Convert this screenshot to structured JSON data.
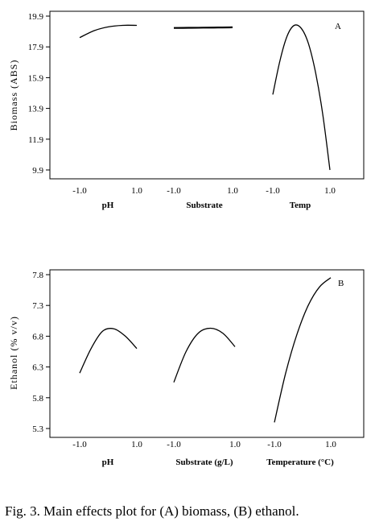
{
  "caption": "Fig. 3. Main effects plot for (A) biomass, (B) ethanol.",
  "chart_data": [
    {
      "type": "line",
      "panel_label": "A",
      "ylabel": "Biomass (ABS)",
      "yticks": [
        "19.9",
        "17.9",
        "15.9",
        "13.9",
        "11.9",
        "9.9"
      ],
      "ylim": [
        9.6,
        20.2
      ],
      "grid": false,
      "factors": [
        {
          "name": "pH",
          "ticks": [
            "-1.0",
            "1.0"
          ],
          "x": [
            -1.0,
            -0.5,
            0.0,
            0.5,
            1.0
          ],
          "y": [
            18.5,
            18.95,
            19.2,
            19.3,
            19.3
          ]
        },
        {
          "name": "Substrate",
          "ticks": [
            "-1.0",
            "1.0"
          ],
          "x": [
            -1.0,
            -0.5,
            0.0,
            0.5,
            1.0
          ],
          "y": [
            19.13,
            19.14,
            19.15,
            19.16,
            19.17
          ]
        },
        {
          "name": "Temp",
          "ticks": [
            "-1.0",
            "1.0"
          ],
          "x": [
            -1.0,
            -0.75,
            -0.5,
            -0.25,
            0.0,
            0.25,
            0.5,
            0.75,
            1.0
          ],
          "y": [
            14.8,
            17.0,
            18.6,
            19.3,
            19.1,
            18.1,
            16.2,
            13.5,
            9.9
          ]
        }
      ]
    },
    {
      "type": "line",
      "panel_label": "B",
      "ylabel": "Ethanol (% v/v)",
      "yticks": [
        "7.8",
        "7.3",
        "6.8",
        "6.3",
        "5.8",
        "5.3"
      ],
      "ylim": [
        5.27,
        7.83
      ],
      "grid": false,
      "factors": [
        {
          "name": "pH",
          "ticks": [
            "-1.0",
            "1.0"
          ],
          "x": [
            -1.0,
            -0.6,
            -0.2,
            0.2,
            0.6,
            1.0
          ],
          "y": [
            6.2,
            6.6,
            6.88,
            6.92,
            6.8,
            6.6
          ]
        },
        {
          "name": "Substrate (g/L)",
          "ticks": [
            "-1.0",
            "1.0"
          ],
          "x": [
            -1.0,
            -0.6,
            -0.2,
            0.2,
            0.6,
            1.0
          ],
          "y": [
            6.05,
            6.55,
            6.85,
            6.93,
            6.85,
            6.63
          ]
        },
        {
          "name": "Temperature (°C)",
          "ticks": [
            "-1.0",
            "1.0"
          ],
          "x": [
            -1.0,
            -0.6,
            -0.2,
            0.2,
            0.6,
            1.0
          ],
          "y": [
            5.4,
            6.2,
            6.83,
            7.3,
            7.6,
            7.75
          ]
        }
      ]
    }
  ]
}
